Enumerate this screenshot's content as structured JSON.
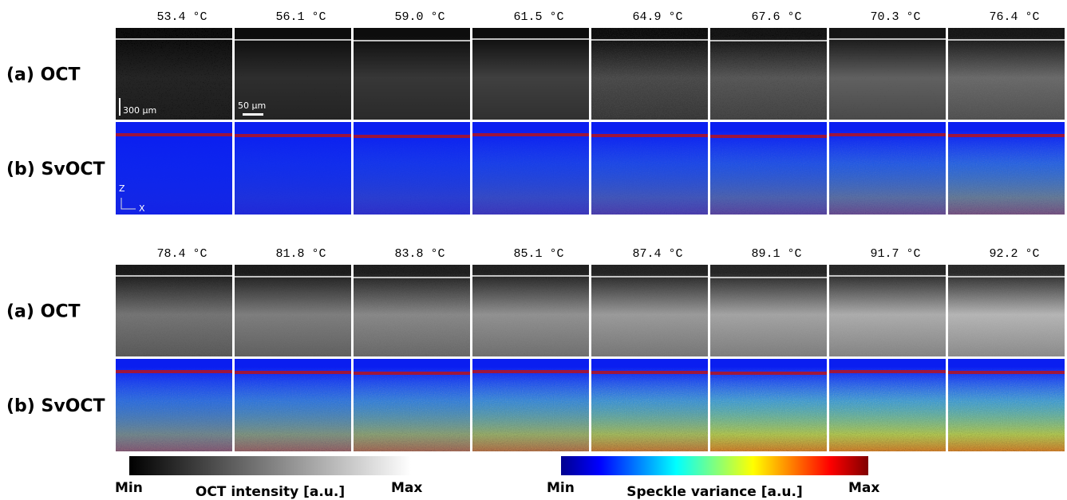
{
  "blocks": [
    {
      "temperatures": [
        "53.4 °C",
        "56.1 °C",
        "59.0 °C",
        "61.5 °C",
        "64.9 °C",
        "67.6 °C",
        "70.3 °C",
        "76.4 °C"
      ],
      "rows": [
        "(a) OCT",
        "(b) SvOCT"
      ]
    },
    {
      "temperatures": [
        "78.4 °C",
        "81.8 °C",
        "83.8 °C",
        "85.1 °C",
        "87.4 °C",
        "89.1 °C",
        "91.7 °C",
        "92.2 °C"
      ],
      "rows": [
        "(a) OCT",
        "(b) SvOCT"
      ]
    }
  ],
  "scale_bars": [
    "300 µm",
    "50 µm"
  ],
  "axes": [
    "Z",
    "X"
  ],
  "colorbars": [
    {
      "min": "Min",
      "label": "OCT intensity [a.u.]",
      "max": "Max"
    },
    {
      "min": "Min",
      "label": "Speckle variance [a.u.]",
      "max": "Max"
    }
  ]
}
